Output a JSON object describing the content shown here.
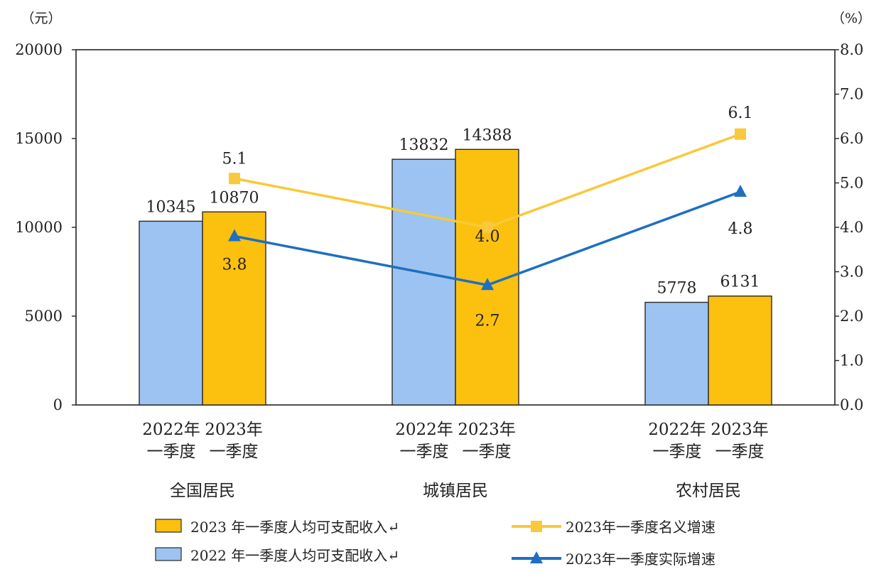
{
  "chart_data": {
    "type": "bar",
    "groups": [
      {
        "sub_labels": [
          [
            "2022年",
            "一季度"
          ],
          [
            "2023年",
            "一季度"
          ]
        ],
        "name": "全国居民"
      },
      {
        "sub_labels": [
          [
            "2022年",
            "一季度"
          ],
          [
            "2023年",
            "一季度"
          ]
        ],
        "name": "城镇居民"
      },
      {
        "sub_labels": [
          [
            "2022年",
            "一季度"
          ],
          [
            "2023年",
            "一季度"
          ]
        ],
        "name": "农村居民"
      }
    ],
    "bar_series": [
      {
        "name": "2022 年一季度人均可支配收入↵",
        "color": "#9cc3f2",
        "values": [
          10345,
          13832,
          5778
        ]
      },
      {
        "name": "2023 年一季度人均可支配收入↵",
        "color": "#fcc00f",
        "values": [
          10870,
          14388,
          6131
        ]
      }
    ],
    "line_series": [
      {
        "name": "2023年一季度名义增速",
        "color": "#f8c93a",
        "marker": "square",
        "values": [
          5.1,
          4.0,
          6.1
        ],
        "labels": [
          "5.1",
          "4.0",
          "6.1"
        ]
      },
      {
        "name": "2023年一季度实际增速",
        "color": "#1f6fc0",
        "marker": "triangle",
        "values": [
          3.8,
          2.7,
          4.8
        ],
        "labels": [
          "3.8",
          "2.7",
          "4.8"
        ]
      }
    ],
    "y_left": {
      "unit": "（元）",
      "range": [
        0,
        20000
      ],
      "ticks": [
        "0",
        "5000",
        "10000",
        "15000",
        "20000"
      ]
    },
    "y_right": {
      "unit": "（%）",
      "range": [
        0,
        8
      ],
      "ticks": [
        "0.0",
        "1.0",
        "2.0",
        "3.0",
        "4.0",
        "5.0",
        "6.0",
        "7.0",
        "8.0"
      ]
    },
    "grid": false,
    "legend_position": "bottom"
  }
}
